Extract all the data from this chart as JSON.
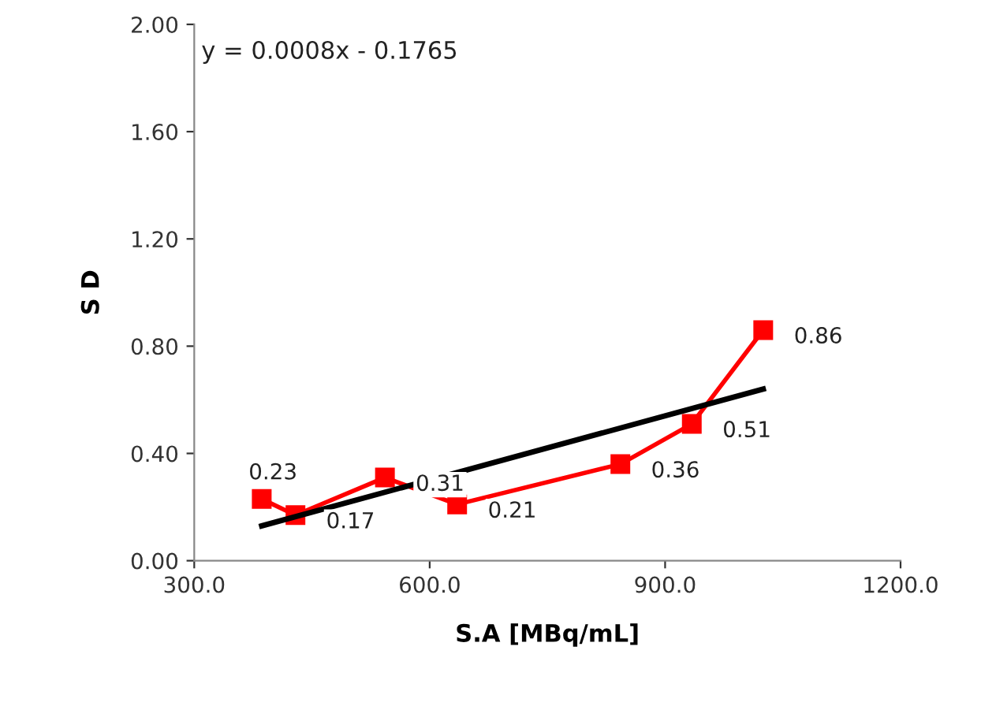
{
  "chart_data": {
    "type": "line",
    "xlabel": "S.A [MBq/mL]",
    "ylabel": "S D",
    "annotations": [
      "y = 0.0008x - 0.1765"
    ],
    "series": [
      {
        "color": "#ff0000",
        "marker": "square",
        "data_labels": true,
        "x": [
          386,
          429,
          543,
          635,
          843,
          934,
          1025
        ],
        "values": [
          0.23,
          0.17,
          0.31,
          0.21,
          0.36,
          0.51,
          0.86
        ]
      },
      {
        "color": "#000000",
        "marker": "none",
        "x": [
          386,
          1025
        ],
        "values": [
          0.13,
          0.64
        ]
      }
    ],
    "xlim": [
      300,
      1200
    ],
    "xticks": [
      {
        "value": 300,
        "label": "300.0"
      },
      {
        "value": 600,
        "label": "600.0"
      },
      {
        "value": 900,
        "label": "900.0"
      },
      {
        "value": 1200,
        "label": "1200.0"
      }
    ],
    "ylim": [
      0,
      2
    ],
    "yticks": [
      {
        "value": 0,
        "label": "0.00"
      },
      {
        "value": 0.4,
        "label": "0.40"
      },
      {
        "value": 0.8,
        "label": "0.80"
      },
      {
        "value": 1.2,
        "label": "1.20"
      },
      {
        "value": 1.6,
        "label": "1.60"
      },
      {
        "value": 2.0,
        "label": "2.00"
      }
    ],
    "grid": false,
    "legend": false
  }
}
